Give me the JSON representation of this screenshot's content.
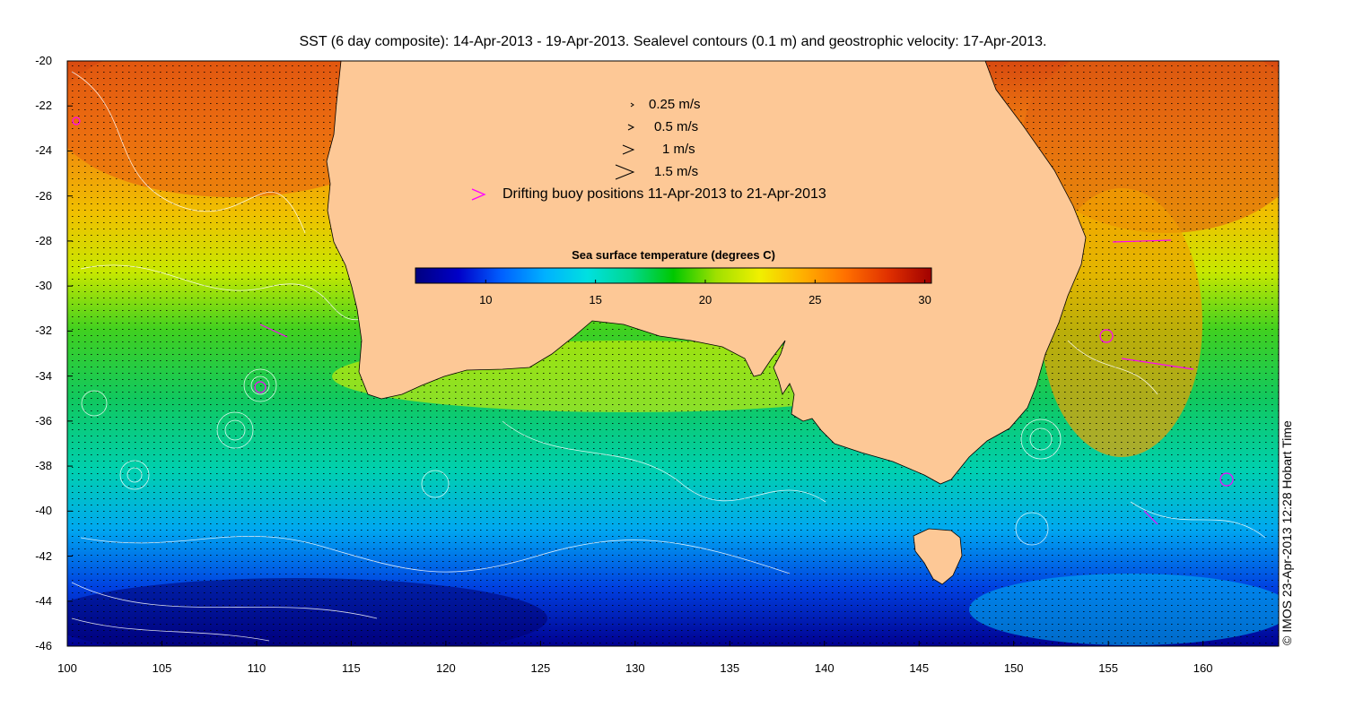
{
  "title": "SST (6 day composite): 14-Apr-2013 - 19-Apr-2013. Sealevel contours (0.1 m) and geostrophic velocity: 17-Apr-2013.",
  "credit": "© IMOS 23-Apr-2013 12:28 Hobart Time",
  "x_axis": {
    "ticks": [
      "100",
      "105",
      "110",
      "115",
      "120",
      "125",
      "130",
      "135",
      "140",
      "145",
      "150",
      "155",
      "160"
    ]
  },
  "y_axis": {
    "ticks": [
      "-20",
      "-22",
      "-24",
      "-26",
      "-28",
      "-30",
      "-32",
      "-34",
      "-36",
      "-38",
      "-40",
      "-42",
      "-44",
      "-46"
    ]
  },
  "legend": {
    "speeds": [
      {
        "label": "0.25 m/s"
      },
      {
        "label": "0.5 m/s"
      },
      {
        "label": "1 m/s"
      },
      {
        "label": "1.5 m/s"
      }
    ],
    "buoy_label": "Drifting buoy positions 11-Apr-2013 to 21-Apr-2013",
    "buoy_color": "#ff00ff"
  },
  "colorbar": {
    "title": "Sea surface temperature (degrees C)",
    "ticks": [
      "10",
      "15",
      "20",
      "25",
      "30"
    ],
    "range": [
      6.8,
      30.3
    ],
    "stops": [
      "#000080",
      "#0000c8",
      "#0060ff",
      "#00b0ff",
      "#00e0e0",
      "#00d890",
      "#00c800",
      "#a0e000",
      "#f0f000",
      "#ffb000",
      "#ff7000",
      "#e03000",
      "#a00000"
    ]
  },
  "colors": {
    "land": "#fdc896",
    "vectors": "#000000",
    "contours": "#ffffff"
  }
}
